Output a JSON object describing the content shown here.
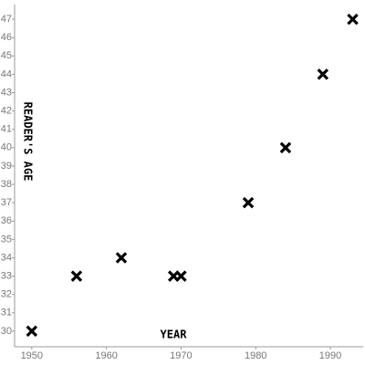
{
  "chart_data": {
    "type": "scatter",
    "x_label": "YEAR",
    "y_label": "READER'S AGE",
    "x": [
      1950,
      1956,
      1962,
      1969,
      1970,
      1979,
      1984,
      1989,
      1993
    ],
    "values": [
      30,
      33,
      34,
      33,
      33,
      37,
      40,
      44,
      47
    ],
    "color": "#000000",
    "marker": "x",
    "xlim": [
      1947.7,
      1994.4
    ],
    "ylim": [
      29.15,
      47.8
    ],
    "xticks": [
      1950,
      1960,
      1970,
      1980,
      1990
    ],
    "yticks": [
      30,
      31,
      32,
      33,
      34,
      35,
      36,
      37,
      38,
      39,
      40,
      41,
      42,
      43,
      44,
      45,
      46,
      47
    ],
    "grid": false
  }
}
